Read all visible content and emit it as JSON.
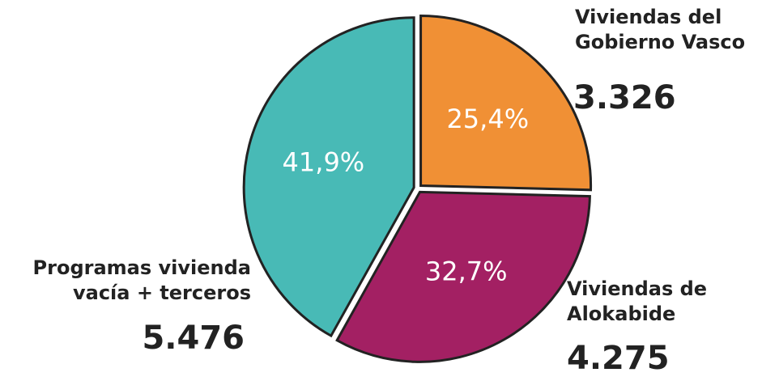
{
  "chart_data": {
    "type": "pie",
    "categories": [
      "Viviendas del Gobierno Vasco",
      "Viviendas de Alokabide",
      "Programas vivienda vacía + terceros"
    ],
    "values": [
      25.4,
      32.7,
      41.9
    ],
    "value_labels": [
      "25,4%",
      "32,7%",
      "41,9%"
    ],
    "counts": [
      3326,
      4275,
      5476
    ],
    "count_labels": [
      "3.326",
      "4.275",
      "5.476"
    ],
    "colors": [
      "#f09035",
      "#a32063",
      "#48bab6"
    ]
  }
}
